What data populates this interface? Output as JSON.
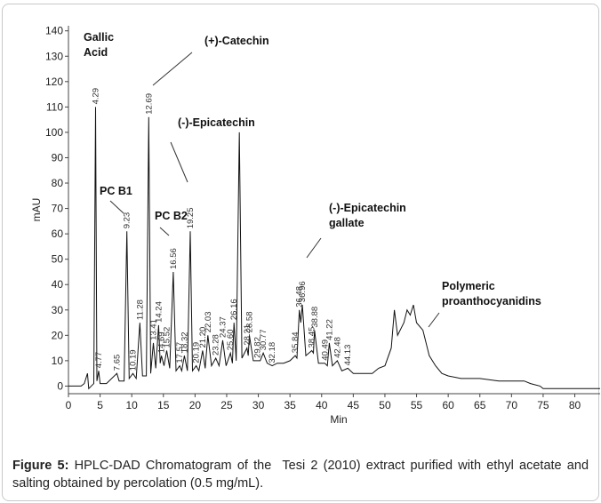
{
  "chart_data": {
    "type": "line",
    "xlabel": "Min",
    "ylabel": "mAU",
    "xlim": [
      0,
      84
    ],
    "ylim": [
      -3,
      142
    ],
    "xticks": [
      0,
      5,
      10,
      15,
      20,
      25,
      30,
      35,
      40,
      45,
      50,
      55,
      60,
      65,
      70,
      75,
      80
    ],
    "yticks": [
      0,
      10,
      20,
      30,
      40,
      50,
      60,
      70,
      80,
      90,
      100,
      110,
      120,
      130,
      140
    ],
    "grid": false,
    "color": "#111111",
    "x": [
      0,
      2,
      2.5,
      3,
      3.2,
      4.0,
      4.29,
      4.5,
      4.77,
      5,
      6,
      7.65,
      8,
      8.8,
      9.23,
      9.6,
      10.19,
      10.7,
      11.28,
      11.7,
      12.3,
      12.69,
      13.0,
      13.41,
      13.8,
      14.24,
      14.5,
      14.69,
      15.1,
      15.52,
      16.0,
      16.56,
      17.0,
      17.57,
      17.9,
      18.32,
      18.8,
      19.25,
      19.6,
      20.19,
      20.6,
      21.2,
      21.6,
      22.03,
      22.6,
      23.28,
      23.8,
      24.37,
      24.9,
      25.6,
      25.9,
      26.16,
      26.5,
      27.0,
      27.4,
      28.21,
      28.4,
      28.58,
      29.2,
      29.82,
      30.3,
      30.77,
      31.4,
      32.18,
      33,
      34,
      35,
      35.84,
      36.1,
      36.48,
      36.7,
      36.96,
      37.5,
      38.45,
      38.7,
      38.88,
      39.5,
      40.49,
      40.9,
      41.22,
      41.7,
      42.48,
      43.2,
      44.13,
      45,
      46,
      47,
      48,
      49,
      50,
      51,
      51.5,
      52,
      53,
      53.5,
      54,
      54.5,
      55,
      56,
      57,
      58,
      59,
      60,
      62,
      65,
      68,
      72,
      73,
      74.5,
      75,
      80,
      84
    ],
    "values": [
      0,
      0,
      1,
      5,
      -1,
      1,
      110,
      2,
      6,
      1,
      1,
      5,
      2,
      2,
      61,
      3,
      5,
      3,
      25,
      4,
      4,
      106,
      5,
      17,
      7,
      24,
      9,
      12,
      8,
      14,
      7,
      45,
      6,
      8,
      6,
      12,
      6,
      61,
      6,
      8,
      6,
      14,
      7,
      20,
      8,
      11,
      8,
      18,
      8,
      13,
      9,
      25,
      10,
      100,
      11,
      15,
      12,
      20,
      10,
      10,
      10,
      13,
      9,
      8,
      9,
      9,
      10,
      12,
      11,
      30,
      25,
      32,
      12,
      14,
      13,
      22,
      9,
      9,
      8,
      17,
      8,
      10,
      6,
      7,
      5,
      5,
      5,
      5,
      7,
      8,
      15,
      30,
      20,
      25,
      30,
      28,
      32,
      25,
      22,
      12,
      8,
      5,
      4,
      3,
      3,
      2,
      2,
      1,
      0,
      -1,
      -1,
      -1
    ],
    "peaks": [
      {
        "time": 4.29,
        "label": "4.29",
        "height": 110
      },
      {
        "time": 4.77,
        "label": "4.77",
        "height": 6
      },
      {
        "time": 7.65,
        "label": "7.65",
        "height": 5
      },
      {
        "time": 9.23,
        "label": "9.23",
        "height": 61
      },
      {
        "time": 10.19,
        "label": "10.19",
        "height": 5
      },
      {
        "time": 11.28,
        "label": "11.28",
        "height": 25
      },
      {
        "time": 12.69,
        "label": "12.69",
        "height": 106
      },
      {
        "time": 13.41,
        "label": "13.41",
        "height": 17
      },
      {
        "time": 14.24,
        "label": "14.24",
        "height": 24
      },
      {
        "time": 14.69,
        "label": "14.69",
        "height": 12
      },
      {
        "time": 15.52,
        "label": "15.52",
        "height": 14
      },
      {
        "time": 16.56,
        "label": "16.56",
        "height": 45
      },
      {
        "time": 17.57,
        "label": "17.57",
        "height": 8
      },
      {
        "time": 18.32,
        "label": "18.32",
        "height": 12
      },
      {
        "time": 19.25,
        "label": "19.25",
        "height": 61
      },
      {
        "time": 20.19,
        "label": "20.19",
        "height": 8
      },
      {
        "time": 21.2,
        "label": "21.20",
        "height": 14
      },
      {
        "time": 22.03,
        "label": "22.03",
        "height": 20
      },
      {
        "time": 23.28,
        "label": "23.28",
        "height": 11
      },
      {
        "time": 24.37,
        "label": "24.37",
        "height": 18
      },
      {
        "time": 25.6,
        "label": "25.60",
        "height": 13
      },
      {
        "time": 26.16,
        "label": "26.16",
        "height": 25
      },
      {
        "time": 28.21,
        "label": "28.21",
        "height": 15
      },
      {
        "time": 28.58,
        "label": "28.58",
        "height": 20
      },
      {
        "time": 29.82,
        "label": "29.82",
        "height": 10
      },
      {
        "time": 30.77,
        "label": "30.77",
        "height": 13
      },
      {
        "time": 32.18,
        "label": "32.18",
        "height": 8
      },
      {
        "time": 35.84,
        "label": "35.84",
        "height": 12
      },
      {
        "time": 36.48,
        "label": "36.48",
        "height": 30
      },
      {
        "time": 36.96,
        "label": "36.96",
        "height": 32
      },
      {
        "time": 38.45,
        "label": "38.45",
        "height": 14
      },
      {
        "time": 38.88,
        "label": "38.88",
        "height": 22
      },
      {
        "time": 40.49,
        "label": "40.49",
        "height": 9
      },
      {
        "time": 41.22,
        "label": "41.22",
        "height": 17
      },
      {
        "time": 42.48,
        "label": "42.48",
        "height": 10
      },
      {
        "time": 44.13,
        "label": "44.13",
        "height": 7
      }
    ],
    "annotations": [
      [
        "Gallic",
        "Acid"
      ],
      [
        "(+)-Catechin"
      ],
      [
        "(-)-Epicatechin"
      ],
      [
        "PC B1"
      ],
      [
        "PC B2"
      ],
      [
        "(-)-Epicatechin",
        "gallate"
      ],
      [
        "Polymeric",
        "proanthocyanidins"
      ]
    ]
  },
  "caption": {
    "label": "Figure 5:",
    "text": "HPLC-DAD Chromatogram of the  Tesi 2 (2010) extract purified with ethyl acetate and salting obtained by percolation (0.5 mg/mL)."
  }
}
